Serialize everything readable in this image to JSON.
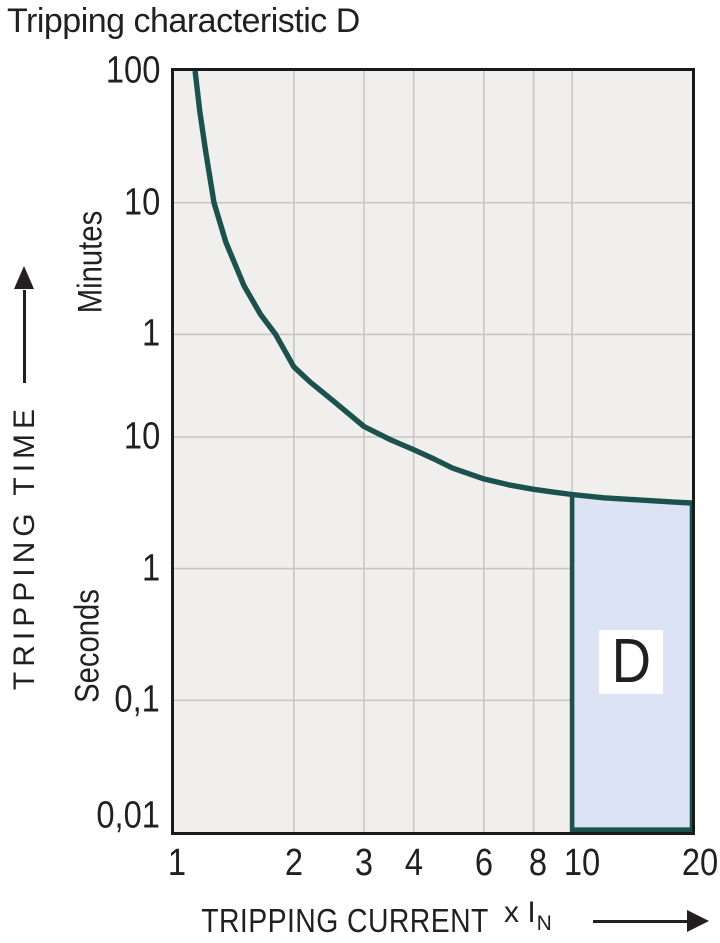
{
  "page": {
    "title": "Tripping characteristic D"
  },
  "colors": {
    "curve_teal": "#1c524d",
    "region_fill": "#dce3f4",
    "plot_bg": "#f0efed",
    "grid": "#c7c7c7",
    "border": "#1a1a1a",
    "text": "#231f20",
    "page_bg": "#ffffff"
  },
  "chart_data": {
    "type": "line",
    "title": "Tripping characteristic D",
    "x_axis": {
      "label": "TRIPPING CURRENT",
      "unit_prefix": "x I",
      "unit_sub": "N",
      "scale": "log",
      "range": [
        1,
        20
      ],
      "ticks": [
        1,
        2,
        3,
        4,
        6,
        8,
        10,
        20
      ],
      "gridlines": [
        2,
        3,
        4,
        6,
        8,
        10
      ]
    },
    "y_axis": {
      "label": "TRIPPING TIME",
      "scale": "log",
      "unit_upper": "Minutes",
      "unit_lower": "Seconds",
      "range_seconds": [
        0.01,
        6000
      ],
      "ticks": [
        {
          "label": "100",
          "seconds": 6000
        },
        {
          "label": "10",
          "seconds": 600
        },
        {
          "label": "1",
          "seconds": 60
        },
        {
          "label": "10",
          "seconds": 10
        },
        {
          "label": "1",
          "seconds": 1
        },
        {
          "label": "0,1",
          "seconds": 0.1
        },
        {
          "label": "0,01",
          "seconds": 0.01
        }
      ],
      "gridlines_seconds": [
        600,
        60,
        10,
        1,
        0.1
      ]
    },
    "series": [
      {
        "name": "D tripping characteristic curve",
        "points": [
          [
            1.13,
            6000
          ],
          [
            1.16,
            3000
          ],
          [
            1.2,
            1500
          ],
          [
            1.26,
            600
          ],
          [
            1.35,
            300
          ],
          [
            1.5,
            140
          ],
          [
            1.65,
            85
          ],
          [
            1.8,
            60
          ],
          [
            2,
            34
          ],
          [
            2.2,
            26
          ],
          [
            2.5,
            19
          ],
          [
            3,
            12
          ],
          [
            3.5,
            9.5
          ],
          [
            4,
            8
          ],
          [
            4.5,
            6.8
          ],
          [
            5,
            5.8
          ],
          [
            6,
            4.8
          ],
          [
            7,
            4.3
          ],
          [
            8,
            4.0
          ],
          [
            9,
            3.8
          ],
          [
            10,
            3.65
          ],
          [
            12,
            3.45
          ],
          [
            14,
            3.35
          ],
          [
            16,
            3.27
          ],
          [
            18,
            3.2
          ],
          [
            20,
            3.15
          ]
        ]
      }
    ],
    "region": {
      "label": "D",
      "x_from": 10,
      "x_to": 20,
      "bottom_seconds": 0.01
    }
  }
}
